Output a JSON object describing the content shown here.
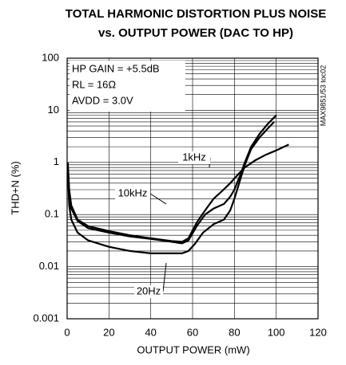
{
  "chart_data": {
    "type": "line",
    "title": "TOTAL HARMONIC DISTORTION PLUS NOISE",
    "subtitle": "vs. OUTPUT POWER (DAC TO HP)",
    "xlabel": "OUTPUT POWER (mW)",
    "ylabel": "THD+N (%)",
    "annotations": [
      "HP GAIN = +5.5dB",
      "RL = 16Ω",
      "AVDD = 3.0V",
      "MAX9851/53 toc02"
    ],
    "xlim": [
      0,
      120
    ],
    "xticks": [
      0,
      20,
      40,
      60,
      80,
      100,
      120
    ],
    "ylim": [
      0.001,
      100
    ],
    "yticks": [
      0.001,
      0.01,
      0.1,
      1,
      10,
      100
    ],
    "log_y": true,
    "grid": true,
    "series": [
      {
        "name": "1kHz",
        "color": "#000000",
        "x": [
          0.3,
          1,
          2,
          5,
          10,
          20,
          30,
          40,
          50,
          55,
          58,
          62,
          66,
          70,
          74,
          78,
          82,
          85,
          90,
          95,
          100,
          106
        ],
        "values": [
          1,
          0.3,
          0.15,
          0.08,
          0.06,
          0.048,
          0.04,
          0.035,
          0.031,
          0.03,
          0.035,
          0.07,
          0.12,
          0.2,
          0.28,
          0.4,
          0.6,
          0.8,
          1.1,
          1.4,
          1.7,
          2.2
        ]
      },
      {
        "name": "10kHz",
        "color": "#000000",
        "x": [
          0.3,
          1,
          2,
          5,
          10,
          20,
          30,
          40,
          50,
          55,
          58,
          62,
          66,
          70,
          75,
          78,
          80,
          83,
          85,
          88,
          92,
          96,
          100
        ],
        "values": [
          0.9,
          0.25,
          0.13,
          0.075,
          0.055,
          0.045,
          0.038,
          0.034,
          0.03,
          0.028,
          0.032,
          0.06,
          0.1,
          0.13,
          0.16,
          0.22,
          0.3,
          0.6,
          1,
          2,
          3.5,
          5.5,
          8
        ]
      },
      {
        "name": "20Hz",
        "color": "#000000",
        "x": [
          0.3,
          1,
          2,
          5,
          10,
          20,
          30,
          40,
          50,
          55,
          58,
          61,
          65,
          70,
          75,
          78,
          80,
          83,
          85,
          88,
          92,
          96,
          99
        ],
        "values": [
          0.7,
          0.15,
          0.08,
          0.045,
          0.032,
          0.024,
          0.02,
          0.018,
          0.018,
          0.018,
          0.02,
          0.027,
          0.045,
          0.065,
          0.08,
          0.12,
          0.2,
          0.5,
          0.9,
          1.8,
          3,
          4.5,
          6
        ]
      }
    ]
  }
}
